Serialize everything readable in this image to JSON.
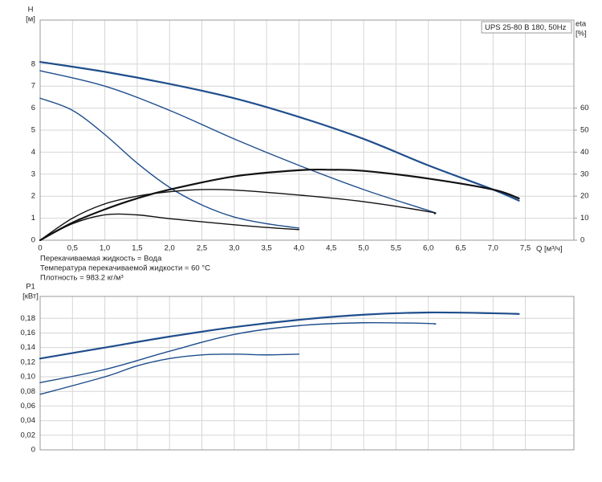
{
  "chart_data": [
    {
      "type": "line",
      "title": "UPS 25-80 B 180, 50Hz",
      "y_label": "H",
      "y_unit": "[м]",
      "y2_label": "eta",
      "y2_unit": "[%]",
      "x_label": "Q [м³/ч]",
      "annotations": [
        "Перекачиваемая жидкость = Вода",
        "Температура перекачиваемой жидкости = 60 °C",
        "Плотность = 983.2 кг/м³"
      ],
      "xlim": [
        0,
        8.25
      ],
      "ylim": [
        0,
        10
      ],
      "y2lim": [
        0,
        100
      ],
      "xticks": [
        0,
        {
          "value": 0.5,
          "label": "0,5"
        },
        {
          "value": 1,
          "label": "1,0"
        },
        {
          "value": 1.5,
          "label": "1,5"
        },
        {
          "value": 2,
          "label": "2,0"
        },
        {
          "value": 2.5,
          "label": "2,5"
        },
        {
          "value": 3,
          "label": "3,0"
        },
        {
          "value": 3.5,
          "label": "3,5"
        },
        {
          "value": 4,
          "label": "4,0"
        },
        {
          "value": 4.5,
          "label": "4,5"
        },
        {
          "value": 5,
          "label": "5,0"
        },
        {
          "value": 5.5,
          "label": "5,5"
        },
        {
          "value": 6,
          "label": "6,0"
        },
        {
          "value": 6.5,
          "label": "6,5"
        },
        {
          "value": 7,
          "label": "7,0"
        },
        {
          "value": 7.5,
          "label": "7,5"
        }
      ],
      "yticks": [
        0,
        1,
        2,
        3,
        4,
        5,
        6,
        7,
        8
      ],
      "y2ticks": [
        0,
        10,
        20,
        30,
        40,
        50,
        60
      ],
      "grid": true,
      "series": [
        {
          "color": "#1f4e8c",
          "x": [
            0,
            1,
            2,
            3,
            4,
            5,
            6,
            7,
            7.4
          ],
          "values": [
            8.1,
            7.65,
            7.1,
            6.45,
            5.6,
            4.6,
            3.4,
            2.3,
            1.8
          ]
        },
        {
          "color": "#1f4e8c",
          "x": [
            0,
            1,
            2,
            3,
            4,
            5,
            6,
            6.1
          ],
          "values": [
            7.7,
            7.0,
            5.9,
            4.6,
            3.4,
            2.3,
            1.35,
            1.25
          ]
        },
        {
          "color": "#1f4e8c",
          "x": [
            0,
            0.5,
            1,
            1.5,
            2,
            2.5,
            3,
            3.5,
            4
          ],
          "values": [
            6.45,
            5.9,
            4.8,
            3.5,
            2.4,
            1.6,
            1.05,
            0.75,
            0.55
          ]
        },
        {
          "color": "#111111",
          "axis": "y2",
          "x": [
            0,
            0.5,
            1,
            1.5,
            2,
            3,
            4,
            4.5,
            5,
            6,
            7,
            7.4
          ],
          "values": [
            0,
            8,
            14,
            19,
            23,
            29,
            31.8,
            32,
            31.5,
            28,
            23,
            19
          ]
        },
        {
          "color": "#111111",
          "axis": "y2",
          "x": [
            0,
            0.5,
            1,
            1.5,
            2,
            2.5,
            3,
            4,
            5,
            6,
            6.1
          ],
          "values": [
            0,
            10,
            16.5,
            20,
            22,
            23,
            22.8,
            20.5,
            17.5,
            13,
            12
          ]
        },
        {
          "color": "#111111",
          "axis": "y2",
          "x": [
            0,
            0.5,
            1,
            1.5,
            2,
            3,
            3.5,
            4
          ],
          "values": [
            0,
            7.5,
            11.5,
            11.5,
            9.8,
            7,
            5.8,
            4.8
          ]
        }
      ]
    },
    {
      "type": "line",
      "y_label": "P1",
      "y_unit": "[кВт]",
      "xlim": [
        0,
        8.25
      ],
      "ylim": [
        0,
        0.21
      ],
      "yticks": [
        0,
        {
          "value": 0.02,
          "label": "0,02"
        },
        {
          "value": 0.04,
          "label": "0,04"
        },
        {
          "value": 0.06,
          "label": "0,06"
        },
        {
          "value": 0.08,
          "label": "0,08"
        },
        {
          "value": 0.1,
          "label": "0,10"
        },
        {
          "value": 0.12,
          "label": "0,12"
        },
        {
          "value": 0.14,
          "label": "0,14"
        },
        {
          "value": 0.16,
          "label": "0,16"
        },
        {
          "value": 0.18,
          "label": "0,18"
        }
      ],
      "grid": true,
      "series": [
        {
          "color": "#1f4e8c",
          "x": [
            0,
            1,
            2,
            3,
            4,
            5,
            6,
            7,
            7.4
          ],
          "values": [
            0.125,
            0.14,
            0.155,
            0.168,
            0.178,
            0.185,
            0.188,
            0.187,
            0.186
          ]
        },
        {
          "color": "#1f4e8c",
          "x": [
            0,
            1,
            2,
            3,
            4,
            5,
            6,
            6.1
          ],
          "values": [
            0.092,
            0.11,
            0.135,
            0.158,
            0.17,
            0.174,
            0.173,
            0.172
          ]
        },
        {
          "color": "#1f4e8c",
          "x": [
            0,
            1,
            1.5,
            2,
            2.5,
            3,
            3.5,
            4
          ],
          "values": [
            0.076,
            0.1,
            0.115,
            0.125,
            0.13,
            0.131,
            0.13,
            0.131
          ]
        }
      ]
    }
  ]
}
